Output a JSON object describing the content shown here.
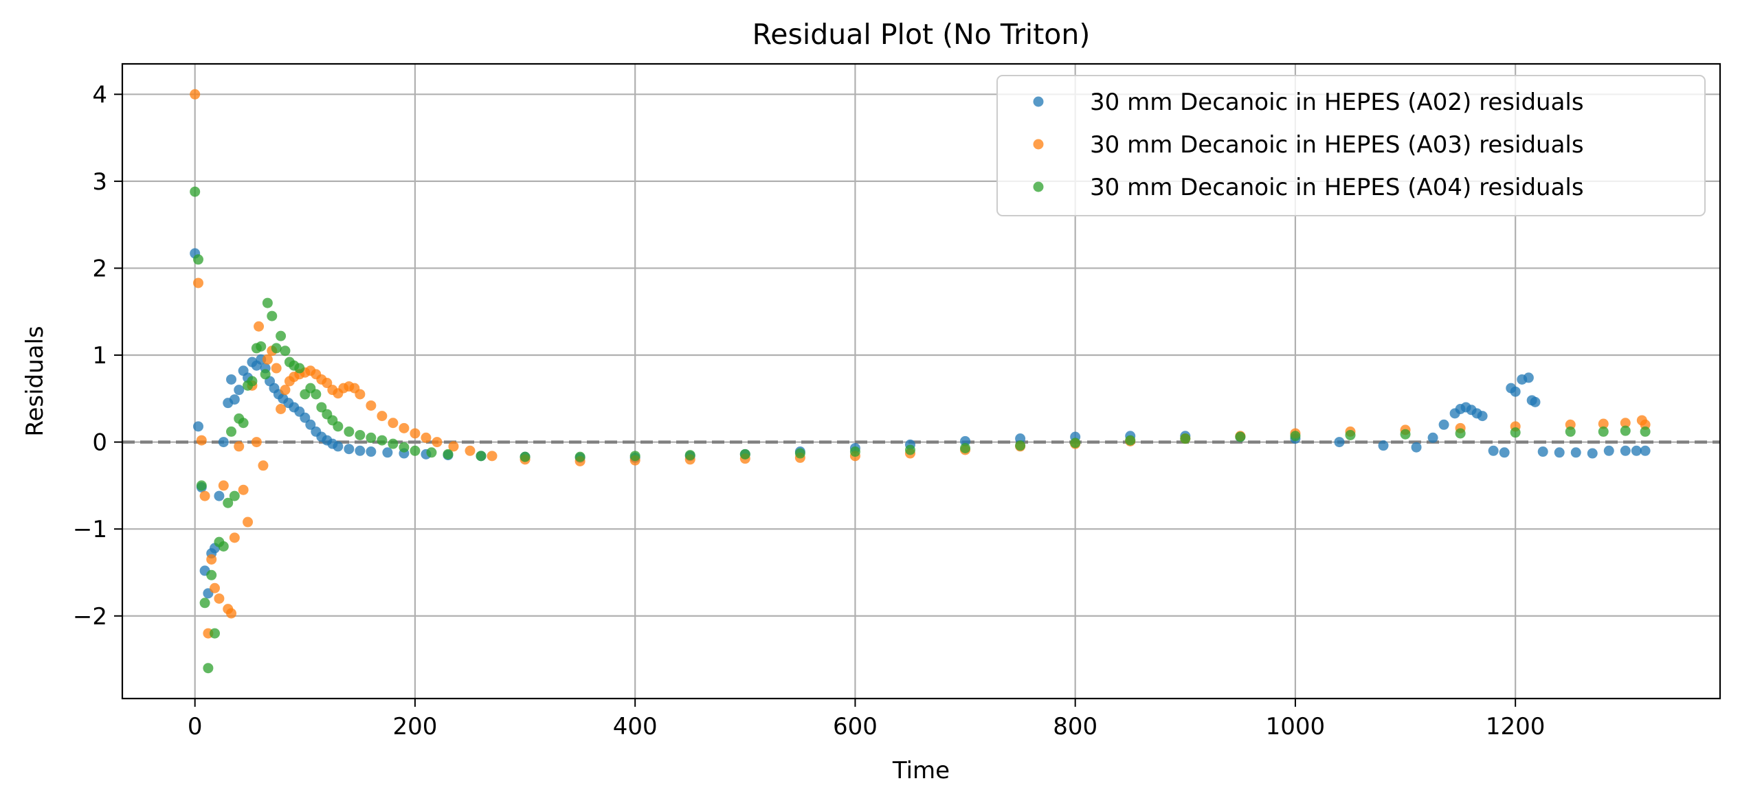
{
  "chart_data": {
    "type": "scatter",
    "title": "Residual Plot (No Triton)",
    "xlabel": "Time",
    "ylabel": "Residuals",
    "xlim": [
      -66,
      1386
    ],
    "ylim": [
      -2.95,
      4.35
    ],
    "xticks": [
      0,
      200,
      400,
      600,
      800,
      1000,
      1200
    ],
    "yticks": [
      -2,
      -1,
      0,
      1,
      2,
      3,
      4
    ],
    "xtick_labels": [
      "0",
      "200",
      "400",
      "600",
      "800",
      "1000",
      "1200"
    ],
    "ytick_labels": [
      "−2",
      "−1",
      "0",
      "1",
      "2",
      "3",
      "4"
    ],
    "grid": true,
    "legend_position": "top-right",
    "reference_line": {
      "y": 0,
      "style": "dashed",
      "color": "#808080"
    },
    "series": [
      {
        "name": "30 mm Decanoic in HEPES (A02) residuals",
        "color": "#1f77b4",
        "points": [
          [
            0,
            2.17
          ],
          [
            3,
            0.18
          ],
          [
            6,
            -0.52
          ],
          [
            9,
            -1.48
          ],
          [
            12,
            -1.74
          ],
          [
            15,
            -1.28
          ],
          [
            18,
            -1.22
          ],
          [
            22,
            -0.62
          ],
          [
            26,
            0.0
          ],
          [
            30,
            0.45
          ],
          [
            33,
            0.72
          ],
          [
            36,
            0.49
          ],
          [
            40,
            0.6
          ],
          [
            44,
            0.82
          ],
          [
            48,
            0.74
          ],
          [
            52,
            0.92
          ],
          [
            56,
            0.88
          ],
          [
            60,
            0.95
          ],
          [
            64,
            0.85
          ],
          [
            68,
            0.7
          ],
          [
            72,
            0.62
          ],
          [
            76,
            0.55
          ],
          [
            80,
            0.5
          ],
          [
            85,
            0.45
          ],
          [
            90,
            0.4
          ],
          [
            95,
            0.35
          ],
          [
            100,
            0.28
          ],
          [
            105,
            0.2
          ],
          [
            110,
            0.12
          ],
          [
            115,
            0.06
          ],
          [
            120,
            0.02
          ],
          [
            125,
            -0.02
          ],
          [
            130,
            -0.05
          ],
          [
            140,
            -0.08
          ],
          [
            150,
            -0.1
          ],
          [
            160,
            -0.11
          ],
          [
            175,
            -0.12
          ],
          [
            190,
            -0.13
          ],
          [
            210,
            -0.14
          ],
          [
            230,
            -0.15
          ],
          [
            260,
            -0.16
          ],
          [
            300,
            -0.17
          ],
          [
            350,
            -0.18
          ],
          [
            400,
            -0.18
          ],
          [
            450,
            -0.16
          ],
          [
            500,
            -0.14
          ],
          [
            550,
            -0.11
          ],
          [
            600,
            -0.07
          ],
          [
            650,
            -0.03
          ],
          [
            700,
            0.01
          ],
          [
            750,
            0.04
          ],
          [
            800,
            0.06
          ],
          [
            850,
            0.07
          ],
          [
            900,
            0.07
          ],
          [
            950,
            0.06
          ],
          [
            1000,
            0.04
          ],
          [
            1040,
            0.0
          ],
          [
            1080,
            -0.04
          ],
          [
            1110,
            -0.06
          ],
          [
            1125,
            0.05
          ],
          [
            1135,
            0.2
          ],
          [
            1145,
            0.33
          ],
          [
            1150,
            0.38
          ],
          [
            1155,
            0.4
          ],
          [
            1160,
            0.37
          ],
          [
            1165,
            0.33
          ],
          [
            1170,
            0.3
          ],
          [
            1180,
            -0.1
          ],
          [
            1190,
            -0.12
          ],
          [
            1196,
            0.62
          ],
          [
            1200,
            0.58
          ],
          [
            1206,
            0.72
          ],
          [
            1212,
            0.74
          ],
          [
            1215,
            0.48
          ],
          [
            1218,
            0.46
          ],
          [
            1225,
            -0.11
          ],
          [
            1240,
            -0.12
          ],
          [
            1255,
            -0.12
          ],
          [
            1270,
            -0.13
          ],
          [
            1285,
            -0.1
          ],
          [
            1300,
            -0.1
          ],
          [
            1310,
            -0.1
          ],
          [
            1318,
            -0.1
          ]
        ]
      },
      {
        "name": "30 mm Decanoic in HEPES (A03) residuals",
        "color": "#ff7f0e",
        "points": [
          [
            0,
            4.0
          ],
          [
            3,
            1.83
          ],
          [
            6,
            0.02
          ],
          [
            9,
            -0.62
          ],
          [
            12,
            -2.2
          ],
          [
            15,
            -1.35
          ],
          [
            18,
            -1.68
          ],
          [
            22,
            -1.8
          ],
          [
            26,
            -0.5
          ],
          [
            30,
            -1.92
          ],
          [
            33,
            -1.97
          ],
          [
            36,
            -1.1
          ],
          [
            40,
            -0.05
          ],
          [
            44,
            -0.55
          ],
          [
            48,
            -0.92
          ],
          [
            52,
            0.65
          ],
          [
            56,
            0.0
          ],
          [
            58,
            1.33
          ],
          [
            62,
            -0.27
          ],
          [
            66,
            0.95
          ],
          [
            70,
            1.05
          ],
          [
            74,
            0.85
          ],
          [
            78,
            0.38
          ],
          [
            82,
            0.6
          ],
          [
            86,
            0.7
          ],
          [
            90,
            0.75
          ],
          [
            95,
            0.78
          ],
          [
            100,
            0.8
          ],
          [
            105,
            0.82
          ],
          [
            110,
            0.78
          ],
          [
            115,
            0.72
          ],
          [
            120,
            0.68
          ],
          [
            125,
            0.6
          ],
          [
            130,
            0.56
          ],
          [
            135,
            0.62
          ],
          [
            140,
            0.64
          ],
          [
            145,
            0.62
          ],
          [
            150,
            0.55
          ],
          [
            160,
            0.42
          ],
          [
            170,
            0.3
          ],
          [
            180,
            0.22
          ],
          [
            190,
            0.16
          ],
          [
            200,
            0.1
          ],
          [
            210,
            0.05
          ],
          [
            220,
            0.0
          ],
          [
            235,
            -0.05
          ],
          [
            250,
            -0.1
          ],
          [
            270,
            -0.16
          ],
          [
            300,
            -0.2
          ],
          [
            350,
            -0.22
          ],
          [
            400,
            -0.21
          ],
          [
            450,
            -0.2
          ],
          [
            500,
            -0.19
          ],
          [
            550,
            -0.18
          ],
          [
            600,
            -0.16
          ],
          [
            650,
            -0.13
          ],
          [
            700,
            -0.09
          ],
          [
            750,
            -0.05
          ],
          [
            800,
            -0.02
          ],
          [
            850,
            0.01
          ],
          [
            900,
            0.04
          ],
          [
            950,
            0.07
          ],
          [
            1000,
            0.1
          ],
          [
            1050,
            0.12
          ],
          [
            1100,
            0.14
          ],
          [
            1150,
            0.16
          ],
          [
            1200,
            0.18
          ],
          [
            1250,
            0.2
          ],
          [
            1280,
            0.21
          ],
          [
            1300,
            0.22
          ],
          [
            1315,
            0.25
          ],
          [
            1318,
            0.2
          ]
        ]
      },
      {
        "name": "30 mm Decanoic in HEPES (A04) residuals",
        "color": "#2ca02c",
        "points": [
          [
            0,
            2.88
          ],
          [
            3,
            2.1
          ],
          [
            6,
            -0.5
          ],
          [
            9,
            -1.85
          ],
          [
            12,
            -2.6
          ],
          [
            15,
            -1.53
          ],
          [
            18,
            -2.2
          ],
          [
            22,
            -1.15
          ],
          [
            26,
            -1.2
          ],
          [
            30,
            -0.7
          ],
          [
            33,
            0.12
          ],
          [
            36,
            -0.62
          ],
          [
            40,
            0.27
          ],
          [
            44,
            0.22
          ],
          [
            48,
            0.65
          ],
          [
            52,
            0.7
          ],
          [
            56,
            1.08
          ],
          [
            60,
            1.1
          ],
          [
            64,
            0.78
          ],
          [
            66,
            1.6
          ],
          [
            70,
            1.45
          ],
          [
            74,
            1.08
          ],
          [
            78,
            1.22
          ],
          [
            82,
            1.05
          ],
          [
            86,
            0.92
          ],
          [
            90,
            0.88
          ],
          [
            95,
            0.85
          ],
          [
            100,
            0.55
          ],
          [
            105,
            0.62
          ],
          [
            110,
            0.55
          ],
          [
            115,
            0.4
          ],
          [
            120,
            0.32
          ],
          [
            125,
            0.25
          ],
          [
            130,
            0.18
          ],
          [
            140,
            0.12
          ],
          [
            150,
            0.08
          ],
          [
            160,
            0.05
          ],
          [
            170,
            0.02
          ],
          [
            180,
            -0.02
          ],
          [
            190,
            -0.06
          ],
          [
            200,
            -0.1
          ],
          [
            215,
            -0.12
          ],
          [
            230,
            -0.14
          ],
          [
            260,
            -0.16
          ],
          [
            300,
            -0.17
          ],
          [
            350,
            -0.17
          ],
          [
            400,
            -0.16
          ],
          [
            450,
            -0.15
          ],
          [
            500,
            -0.14
          ],
          [
            550,
            -0.13
          ],
          [
            600,
            -0.11
          ],
          [
            650,
            -0.09
          ],
          [
            700,
            -0.07
          ],
          [
            750,
            -0.04
          ],
          [
            800,
            -0.01
          ],
          [
            850,
            0.02
          ],
          [
            900,
            0.04
          ],
          [
            950,
            0.06
          ],
          [
            1000,
            0.07
          ],
          [
            1050,
            0.08
          ],
          [
            1100,
            0.09
          ],
          [
            1150,
            0.1
          ],
          [
            1200,
            0.11
          ],
          [
            1250,
            0.12
          ],
          [
            1280,
            0.12
          ],
          [
            1300,
            0.13
          ],
          [
            1318,
            0.12
          ]
        ]
      }
    ]
  }
}
